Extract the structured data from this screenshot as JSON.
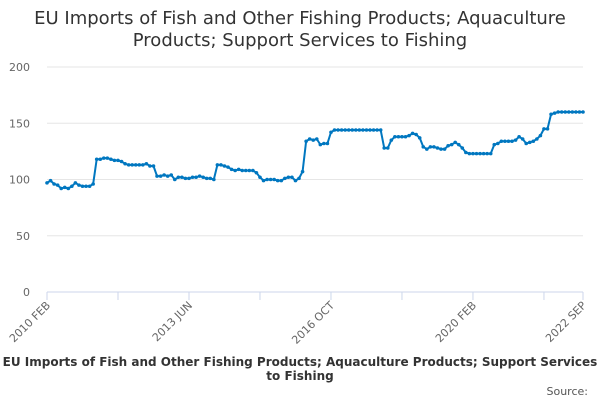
{
  "chart_data": {
    "type": "line",
    "title": "EU Imports of Fish and Other Fishing Products; Aquaculture Products; Support Services to Fishing",
    "subtitle": "EU Imports of Fish and Other Fishing Products; Aquaculture Products; Support Services to Fishing",
    "source_label": "Source:",
    "x_start": "2010 FEB",
    "x_end": "2022 SEP",
    "frequency": "monthly",
    "x_tick_labels": [
      "2010 FEB",
      "2013 JUN",
      "2016 OCT",
      "2020 FEB",
      "2022 SEP"
    ],
    "x_tick_indices": [
      0,
      40,
      80,
      120,
      151
    ],
    "y_ticks": [
      0,
      50,
      100,
      150,
      200
    ],
    "ylim": [
      0,
      200
    ],
    "grid": true,
    "color": "#0077c0",
    "values": [
      97,
      99,
      96,
      95,
      92,
      93,
      92,
      94,
      97,
      95,
      94,
      94,
      94,
      96,
      118,
      118,
      119,
      119,
      118,
      117,
      117,
      116,
      114,
      113,
      113,
      113,
      113,
      113,
      114,
      112,
      112,
      103,
      103,
      104,
      103,
      104,
      100,
      102,
      102,
      101,
      101,
      102,
      102,
      103,
      102,
      101,
      101,
      100,
      113,
      113,
      112,
      111,
      109,
      108,
      109,
      108,
      108,
      108,
      108,
      106,
      102,
      99,
      100,
      100,
      100,
      99,
      99,
      101,
      102,
      102,
      99,
      101,
      107,
      134,
      136,
      135,
      136,
      131,
      132,
      132,
      142,
      144,
      144,
      144,
      144,
      144,
      144,
      144,
      144,
      144,
      144,
      144,
      144,
      144,
      144,
      128,
      128,
      135,
      138,
      138,
      138,
      138,
      139,
      141,
      140,
      137,
      129,
      127,
      129,
      129,
      128,
      127,
      127,
      130,
      131,
      133,
      131,
      128,
      124,
      123,
      123,
      123,
      123,
      123,
      123,
      123,
      131,
      132,
      134,
      134,
      134,
      134,
      135,
      138,
      136,
      132,
      133,
      134,
      136,
      139,
      145,
      145,
      158,
      159,
      160,
      160,
      160,
      160,
      160,
      160,
      160,
      160
    ]
  }
}
